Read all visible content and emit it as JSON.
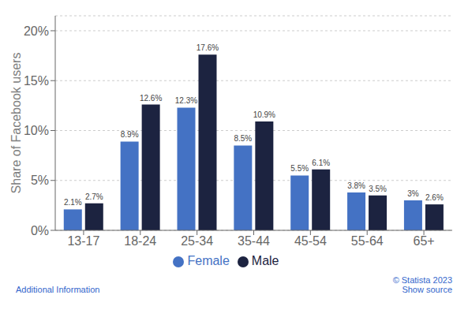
{
  "chart_data": {
    "type": "bar",
    "categories": [
      "13-17",
      "18-24",
      "25-34",
      "35-44",
      "45-54",
      "55-64",
      "65+"
    ],
    "series": [
      {
        "name": "Female",
        "color": "#4472C4",
        "values": [
          2.1,
          8.9,
          12.3,
          8.5,
          5.5,
          3.8,
          3.0
        ],
        "value_labels": [
          "2.1%",
          "8.9%",
          "12.3%",
          "8.5%",
          "5.5%",
          "3.8%",
          "3%"
        ]
      },
      {
        "name": "Male",
        "color": "#1C2340",
        "values": [
          2.7,
          12.6,
          17.6,
          10.9,
          6.1,
          3.5,
          2.6
        ],
        "value_labels": [
          "2.7%",
          "12.6%",
          "17.6%",
          "10.9%",
          "6.1%",
          "3.5%",
          "2.6%"
        ]
      }
    ],
    "ylabel": "Share of Facebook users",
    "ylim": [
      0,
      21.5
    ],
    "yticks": [
      {
        "value": 0,
        "label": "0%"
      },
      {
        "value": 5,
        "label": "5%"
      },
      {
        "value": 10,
        "label": "10%"
      },
      {
        "value": 15,
        "label": "15%"
      },
      {
        "value": 20,
        "label": "20%"
      }
    ],
    "grid": true,
    "data_labels": true,
    "legend": "bottom",
    "annotations": [
      "Additional Information",
      "© Statista 2023",
      "Show source"
    ]
  }
}
